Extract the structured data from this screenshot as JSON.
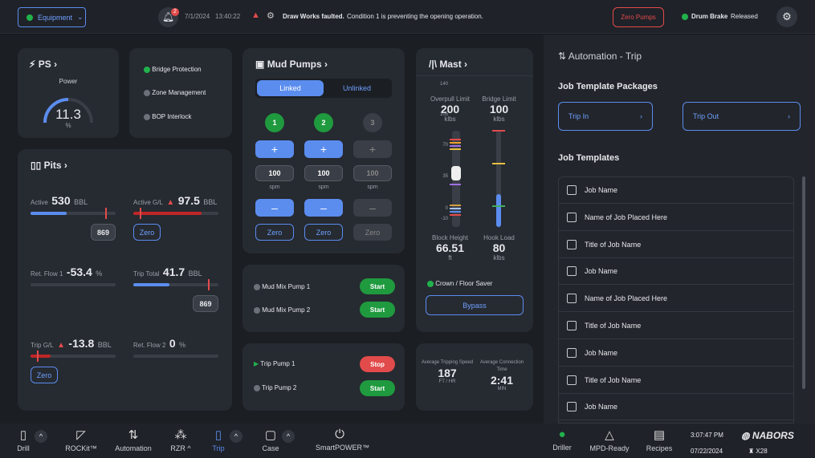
{
  "topbar": {
    "equipment": "Equipment",
    "notif_count": "2",
    "date": "7/1/2024",
    "time": "13:40:22",
    "alert_bold": "Draw Works faulted.",
    "alert_text": "Condition 1 is preventing the opening operation.",
    "zero_pumps": "Zero Pumps",
    "drum_brake": "Drum Brake",
    "drum_state": "Released"
  },
  "ps": {
    "title": "PS",
    "label": "Power",
    "value": "11.3",
    "unit": "%",
    "level": 11.3
  },
  "interlocks": [
    {
      "label": "Bridge Protection",
      "status": "green"
    },
    {
      "label": "Zone Management",
      "status": "grey"
    },
    {
      "label": "BOP Interlock",
      "status": "grey"
    }
  ],
  "pits": {
    "title": "Pits",
    "active": {
      "label": "Active",
      "value": "530",
      "unit": "BBL",
      "setpoint": "869"
    },
    "active_gl": {
      "label": "Active G/L",
      "value": "97.5",
      "unit": "BBL",
      "button": "Zero"
    },
    "ret_flow1": {
      "label": "Ret. Flow 1",
      "value": "-53.4",
      "unit": "%"
    },
    "trip_total": {
      "label": "Trip Total",
      "value": "41.7",
      "unit": "BBL",
      "setpoint": "869"
    },
    "trip_gl": {
      "label": "Trip G/L",
      "value": "-13.8",
      "unit": "BBL",
      "button": "Zero"
    },
    "ret_flow2": {
      "label": "Ret. Flow 2",
      "value": "0",
      "unit": "%"
    }
  },
  "mud_pumps": {
    "title": "Mud Pumps",
    "linked": "Linked",
    "unlinked": "Unlinked",
    "pumps": [
      {
        "n": "1",
        "spm": "100",
        "unit": "spm",
        "zero": "Zero",
        "on": true
      },
      {
        "n": "2",
        "spm": "100",
        "unit": "spm",
        "zero": "Zero",
        "on": true
      },
      {
        "n": "3",
        "spm": "100",
        "unit": "spm",
        "zero": "Zero",
        "on": false
      }
    ]
  },
  "mix": [
    {
      "label": "Mud Mix Pump 1",
      "btn": "Start"
    },
    {
      "label": "Mud Mix Pump 2",
      "btn": "Start"
    }
  ],
  "trip_pumps": [
    {
      "label": "Trip Pump 1",
      "btn": "Stop"
    },
    {
      "label": "Trip Pump 2",
      "btn": "Start"
    }
  ],
  "mast": {
    "title": "Mast",
    "overpull_label": "Overpull Limit",
    "overpull": "200",
    "overpull_unit": "klbs",
    "bridge_label": "Bridge Limit",
    "bridge": "100",
    "bridge_unit": "klbs",
    "ticks": [
      "140",
      "105",
      "70",
      "35",
      "0",
      "-10"
    ],
    "block_label": "Block Height",
    "block": "66.51",
    "block_unit": "ft",
    "hook_label": "Hook Load",
    "hook": "80",
    "hook_unit": "klbs",
    "crown": "Crown / Floor Saver",
    "bypass": "Bypass"
  },
  "avg": {
    "speed_label": "Average Tripping Speed",
    "speed": "187",
    "speed_unit": "FT / HR",
    "conn_label": "Average Connection Time",
    "conn": "2:41",
    "conn_unit": "MIN"
  },
  "automation": {
    "title": "Automation - Trip",
    "packages_title": "Job Template Packages",
    "packages": [
      "Trip In",
      "Trip Out"
    ],
    "templates_title": "Job Templates",
    "templates": [
      "Job Name",
      "Name of Job Placed Here",
      "Title of Job Name",
      "Job Name",
      "Name of Job Placed Here",
      "Title of Job Name",
      "Job Name",
      "Title of Job Name",
      "Job Name"
    ]
  },
  "bottom": {
    "items": [
      "Drill",
      "ROCKit™",
      "Automation",
      "RZR ^",
      "Trip",
      "Case",
      "SmartPOWER™"
    ],
    "right": [
      "Driller",
      "MPD-Ready",
      "Recipes"
    ],
    "time": "3:07:47 PM",
    "date": "07/22/2024",
    "brand": "NABORS",
    "rig": "X28"
  },
  "colors": {
    "accent": "#5b8def",
    "green": "#22b14c",
    "red": "#e24b4b"
  }
}
